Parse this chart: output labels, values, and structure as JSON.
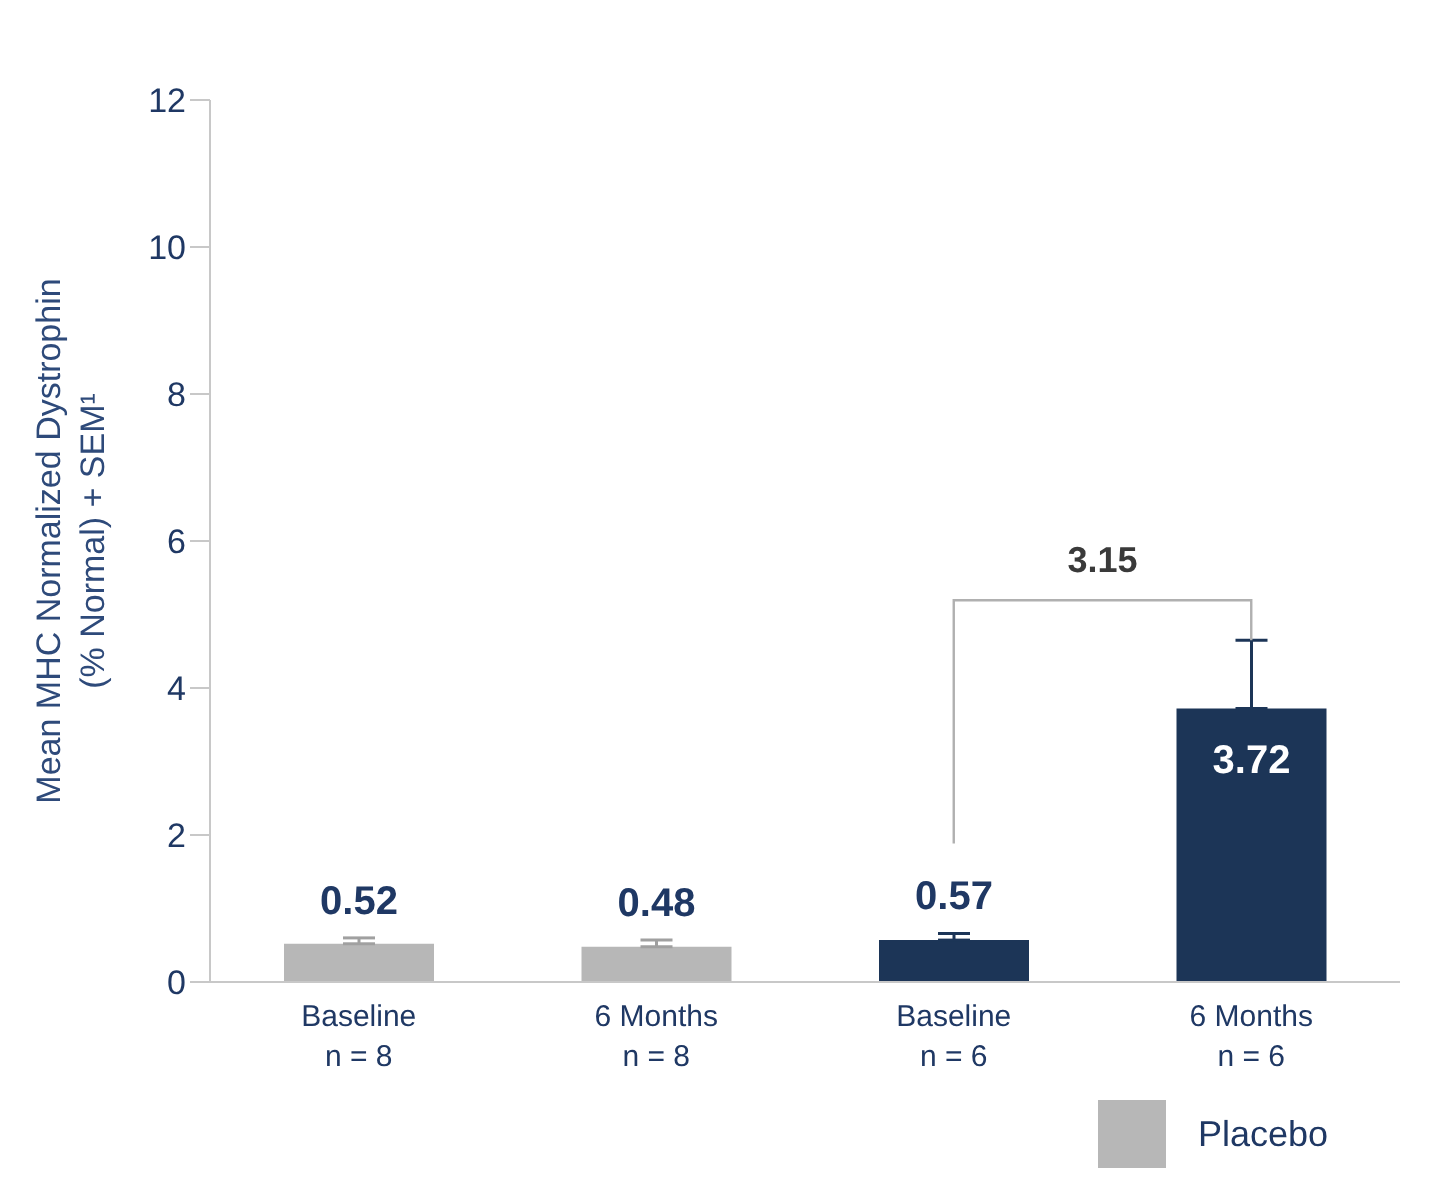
{
  "chart_data": {
    "type": "bar",
    "ylabel": "Mean MHC Normalized Dystrophin\n(% Normal) + SEM¹",
    "categories": [
      "Baseline\nn = 8",
      "6 Months\nn = 8",
      "Baseline\nn = 6",
      "6 Months\nn = 6"
    ],
    "series": [
      {
        "name": "Placebo",
        "color": "#b7b7b7",
        "values": [
          0.52,
          0.48,
          null,
          null
        ],
        "errors": [
          [
            0.52,
            0.6
          ],
          [
            0.48,
            0.57
          ],
          null,
          null
        ]
      },
      {
        "color": "#1c3557",
        "values": [
          null,
          null,
          0.57,
          3.72
        ],
        "errors": [
          null,
          null,
          [
            0.57,
            0.66
          ],
          [
            3.72,
            4.65
          ]
        ]
      }
    ],
    "ylim": [
      0,
      12
    ],
    "yticks": [
      0,
      2,
      4,
      6,
      8,
      10,
      12
    ],
    "data_labels": true,
    "legend": "bottom right",
    "grid": false,
    "annotations": [
      "3.15"
    ]
  }
}
